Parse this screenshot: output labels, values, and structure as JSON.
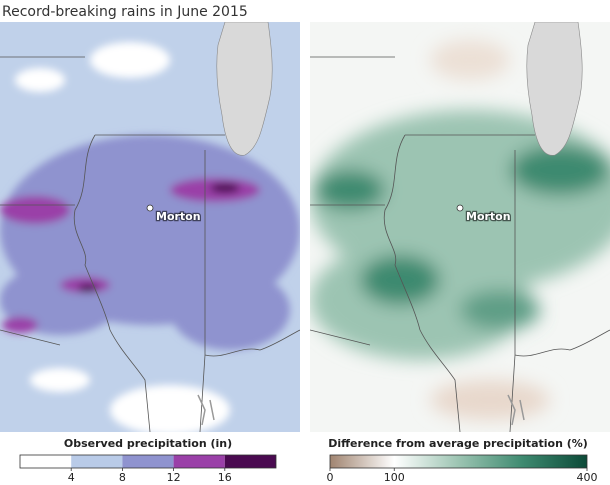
{
  "title": "Record-breaking rains in June 2015",
  "maps": [
    {
      "label": "Morton"
    },
    {
      "label": "Morton"
    }
  ],
  "legends": [
    {
      "title": "Observed precipitation (in)",
      "range": [
        0,
        20
      ],
      "ticks": [
        4,
        8,
        12,
        16
      ],
      "colors": [
        "#ffffff",
        "#b9cbe8",
        "#8f93cf",
        "#9a40a8",
        "#4a0a50"
      ]
    },
    {
      "title": "Difference from average precipitation (%)",
      "range": [
        0,
        400
      ],
      "ticks": [
        0,
        100,
        400
      ],
      "colors": [
        "#a08470",
        "#ffffff",
        "#9cc4b2",
        "#3e8a70",
        "#0c4a38"
      ]
    }
  ]
}
